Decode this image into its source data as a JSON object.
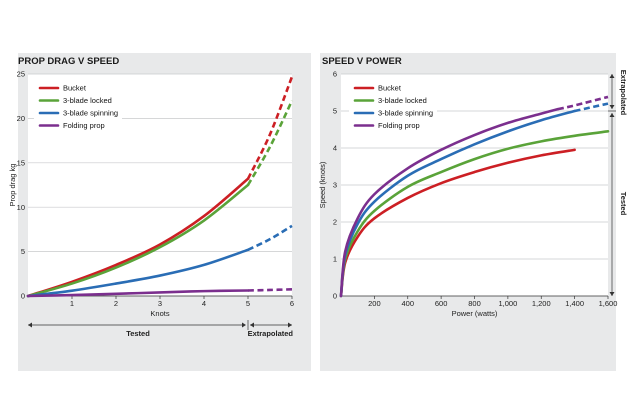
{
  "chart_data": [
    {
      "type": "line",
      "title": "PROP DRAG V SPEED",
      "xlabel": "Knots",
      "ylabel": "Prop drag kg",
      "xlim": [
        0,
        6
      ],
      "ylim": [
        0,
        25
      ],
      "x_ticks": [
        "1",
        "2",
        "3",
        "4",
        "5",
        "6"
      ],
      "y_ticks": [
        "0",
        "5",
        "10",
        "15",
        "20",
        "25"
      ],
      "legend": "top-left",
      "annotations": [
        {
          "text": "Tested",
          "range": [
            0,
            5
          ]
        },
        {
          "text": "Extrapolated",
          "range": [
            5,
            6
          ]
        }
      ],
      "series": [
        {
          "name": "Bucket",
          "color": "#cc1f24",
          "x": [
            0,
            1,
            2,
            3,
            4,
            5,
            5.5,
            6
          ],
          "y": [
            0,
            1.6,
            3.5,
            5.8,
            9.0,
            13.2,
            18.2,
            24.7
          ]
        },
        {
          "name": "3-blade locked",
          "color": "#5aa339",
          "x": [
            0,
            1,
            2,
            3,
            4,
            5,
            5.5,
            6
          ],
          "y": [
            0,
            1.4,
            3.2,
            5.5,
            8.5,
            12.5,
            16.8,
            22.0
          ]
        },
        {
          "name": "3-blade spinning",
          "color": "#2a6db5",
          "x": [
            0,
            1,
            2,
            3,
            4,
            5,
            5.5,
            6
          ],
          "y": [
            0,
            0.6,
            1.4,
            2.3,
            3.5,
            5.2,
            6.4,
            7.9
          ]
        },
        {
          "name": "Folding prop",
          "color": "#7b2f8e",
          "x": [
            0,
            1,
            2,
            3,
            4,
            5,
            5.5,
            6
          ],
          "y": [
            0,
            0.1,
            0.25,
            0.4,
            0.55,
            0.62,
            0.68,
            0.75
          ]
        }
      ]
    },
    {
      "type": "line",
      "title": "SPEED V POWER",
      "xlabel": "Power (watts)",
      "ylabel": "Speed (knots)",
      "xlim": [
        0,
        1600
      ],
      "ylim": [
        0,
        6
      ],
      "x_ticks": [
        "200",
        "400",
        "600",
        "800",
        "1,000",
        "1,200",
        "1,400",
        "1,600"
      ],
      "y_ticks": [
        "0",
        "1",
        "2",
        "3",
        "4",
        "5",
        "6"
      ],
      "legend": "top-left",
      "annotations": [
        {
          "text": "Tested",
          "range": [
            0,
            5
          ]
        },
        {
          "text": "Extrapolated",
          "range": [
            5,
            6
          ]
        }
      ],
      "series": [
        {
          "name": "Bucket",
          "color": "#cc1f24",
          "x": [
            0,
            25,
            100,
            200,
            400,
            600,
            800,
            1000,
            1200,
            1400
          ],
          "y": [
            0,
            0.9,
            1.6,
            2.1,
            2.65,
            3.05,
            3.35,
            3.6,
            3.8,
            3.95
          ]
        },
        {
          "name": "3-blade locked",
          "color": "#5aa339",
          "x": [
            0,
            25,
            100,
            200,
            400,
            600,
            800,
            1000,
            1200,
            1400,
            1600
          ],
          "y": [
            0,
            1.0,
            1.75,
            2.3,
            2.95,
            3.35,
            3.7,
            3.98,
            4.18,
            4.33,
            4.45
          ]
        },
        {
          "name": "3-blade spinning",
          "color": "#2a6db5",
          "x": [
            0,
            25,
            100,
            200,
            400,
            600,
            800,
            1000,
            1200,
            1400,
            1600
          ],
          "y": [
            0,
            1.1,
            1.95,
            2.55,
            3.25,
            3.7,
            4.1,
            4.45,
            4.75,
            5.0,
            5.2
          ]
        },
        {
          "name": "Folding prop",
          "color": "#7b2f8e",
          "x": [
            0,
            25,
            100,
            200,
            400,
            600,
            800,
            1000,
            1200,
            1300,
            1400,
            1600
          ],
          "y": [
            0,
            1.2,
            2.1,
            2.75,
            3.45,
            3.95,
            4.35,
            4.68,
            4.93,
            5.05,
            5.15,
            5.38
          ]
        }
      ]
    }
  ]
}
